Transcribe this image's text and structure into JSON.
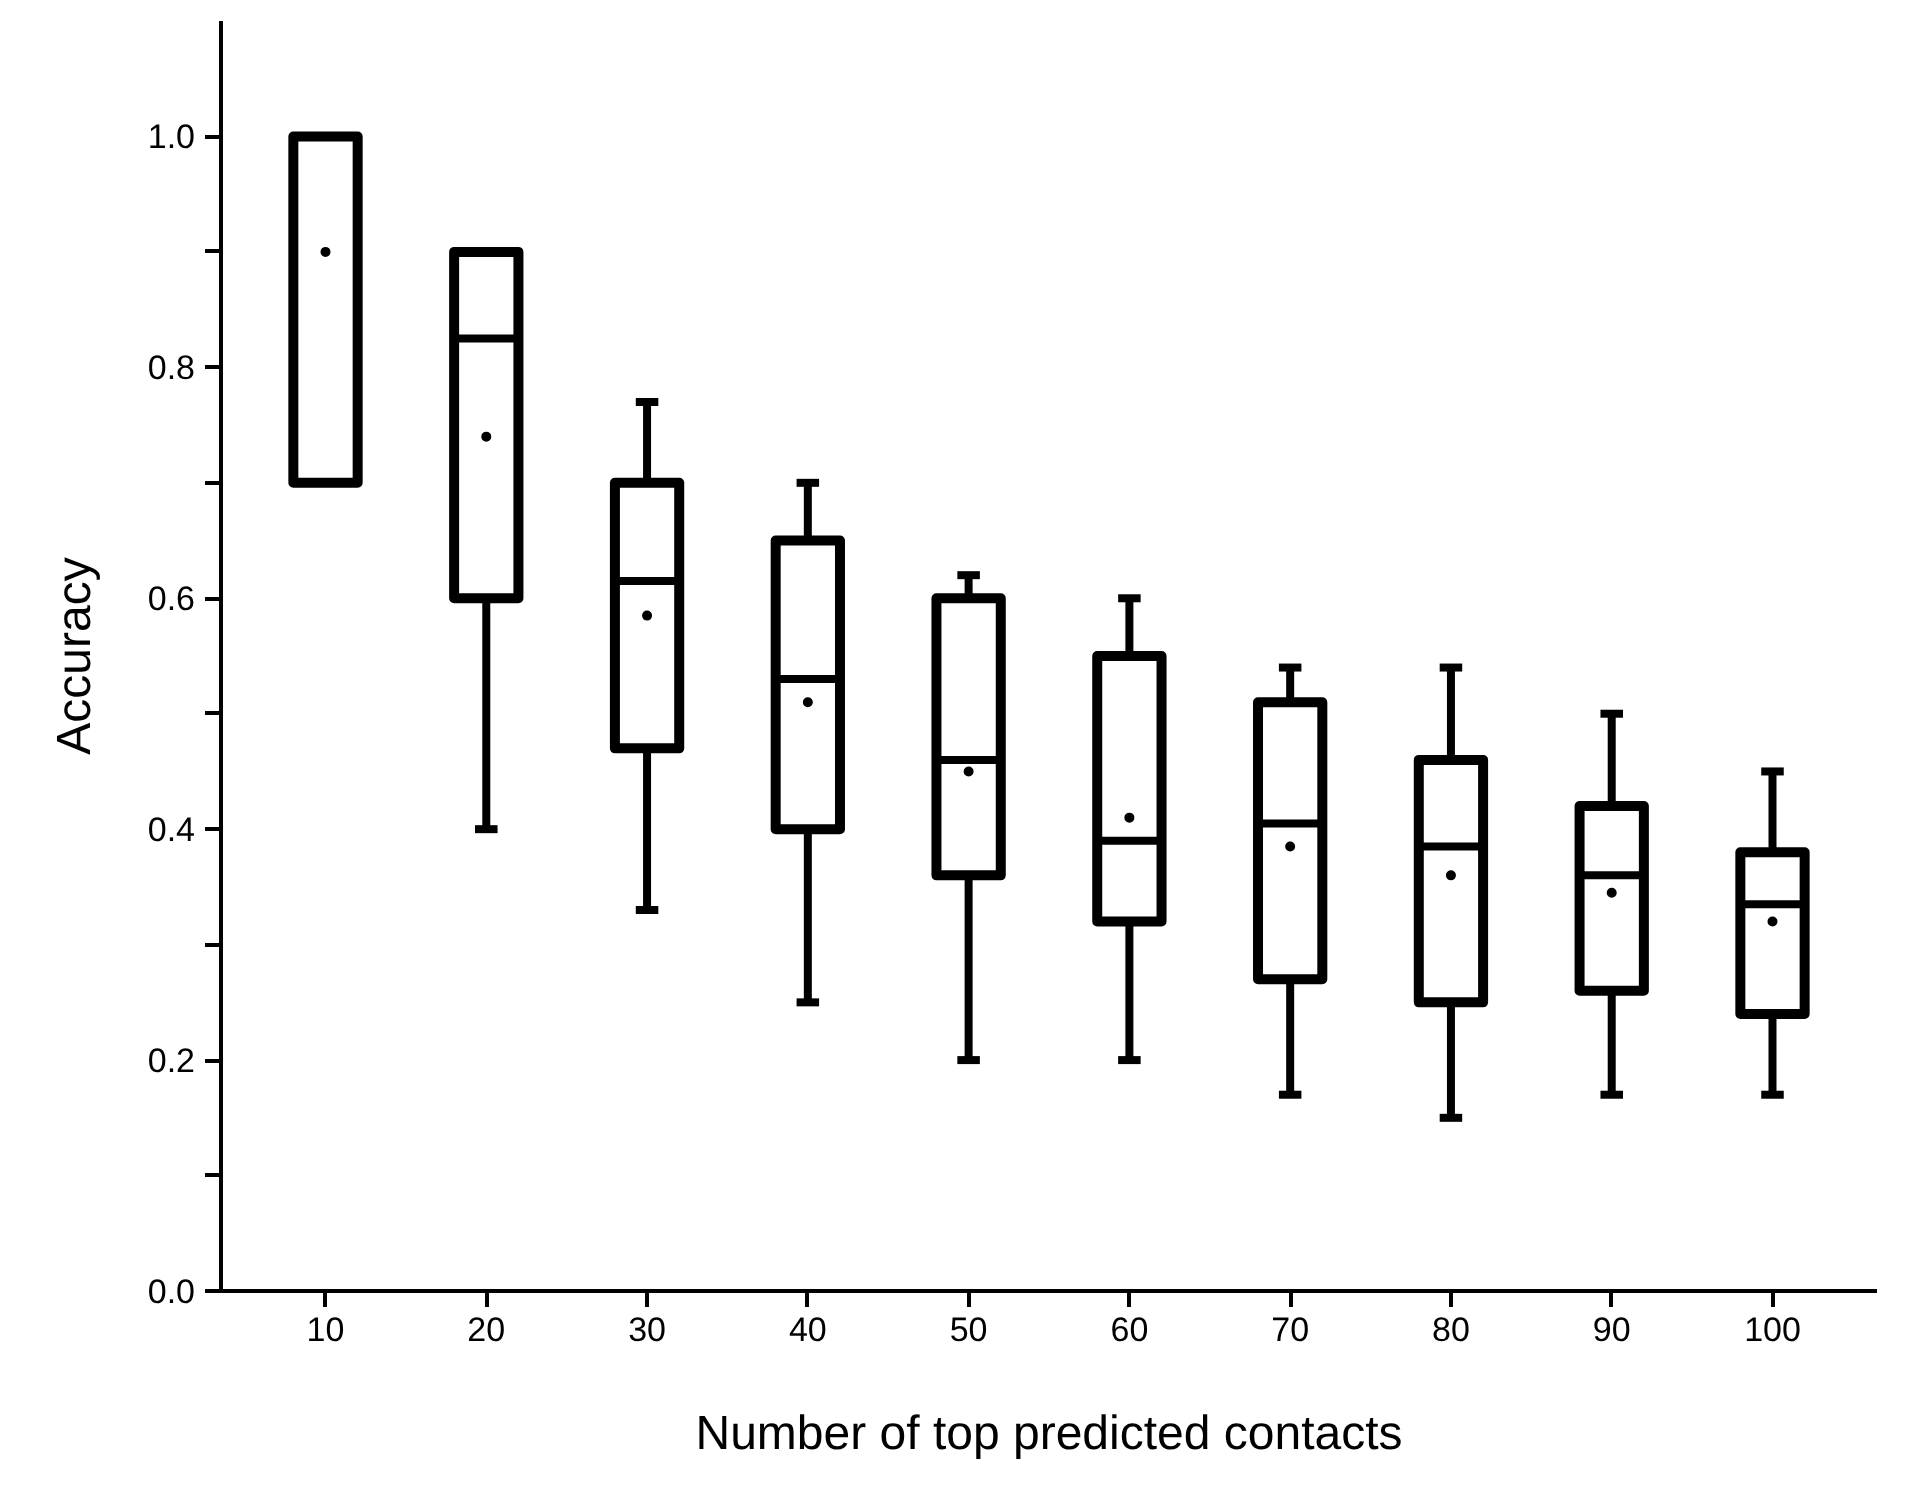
{
  "chart_data": {
    "type": "box",
    "xlabel": "Number of top predicted contacts",
    "ylabel": "Accuracy",
    "categories": [
      "10",
      "20",
      "30",
      "40",
      "50",
      "60",
      "70",
      "80",
      "90",
      "100"
    ],
    "color": "#000000",
    "boxes": [
      {
        "low": 0.7,
        "q1": 0.7,
        "median": 1.0,
        "q3": 1.0,
        "high": 1.0,
        "mean": 0.9
      },
      {
        "low": 0.4,
        "q1": 0.6,
        "median": 0.825,
        "q3": 0.9,
        "high": 0.9,
        "mean": 0.74
      },
      {
        "low": 0.33,
        "q1": 0.47,
        "median": 0.615,
        "q3": 0.7,
        "high": 0.77,
        "mean": 0.585
      },
      {
        "low": 0.25,
        "q1": 0.4,
        "median": 0.53,
        "q3": 0.65,
        "high": 0.7,
        "mean": 0.51
      },
      {
        "low": 0.2,
        "q1": 0.36,
        "median": 0.46,
        "q3": 0.6,
        "high": 0.62,
        "mean": 0.45
      },
      {
        "low": 0.2,
        "q1": 0.32,
        "median": 0.39,
        "q3": 0.55,
        "high": 0.6,
        "mean": 0.41
      },
      {
        "low": 0.17,
        "q1": 0.27,
        "median": 0.405,
        "q3": 0.51,
        "high": 0.54,
        "mean": 0.385
      },
      {
        "low": 0.15,
        "q1": 0.25,
        "median": 0.385,
        "q3": 0.46,
        "high": 0.54,
        "mean": 0.36
      },
      {
        "low": 0.17,
        "q1": 0.26,
        "median": 0.36,
        "q3": 0.42,
        "high": 0.5,
        "mean": 0.345
      },
      {
        "low": 0.17,
        "q1": 0.24,
        "median": 0.335,
        "q3": 0.38,
        "high": 0.45,
        "mean": 0.32
      }
    ],
    "ylim": [
      0,
      1.1
    ],
    "yticks": [
      {
        "value": 0.0,
        "label": "0.0"
      },
      {
        "value": 0.1,
        "label": null
      },
      {
        "value": 0.2,
        "label": "0.2"
      },
      {
        "value": 0.3,
        "label": null
      },
      {
        "value": 0.4,
        "label": "0.4"
      },
      {
        "value": 0.5,
        "label": null
      },
      {
        "value": 0.6,
        "label": "0.6"
      },
      {
        "value": 0.7,
        "label": null
      },
      {
        "value": 0.8,
        "label": "0.8"
      },
      {
        "value": 0.9,
        "label": null
      },
      {
        "value": 1.0,
        "label": "1.0"
      }
    ],
    "grid": false
  }
}
